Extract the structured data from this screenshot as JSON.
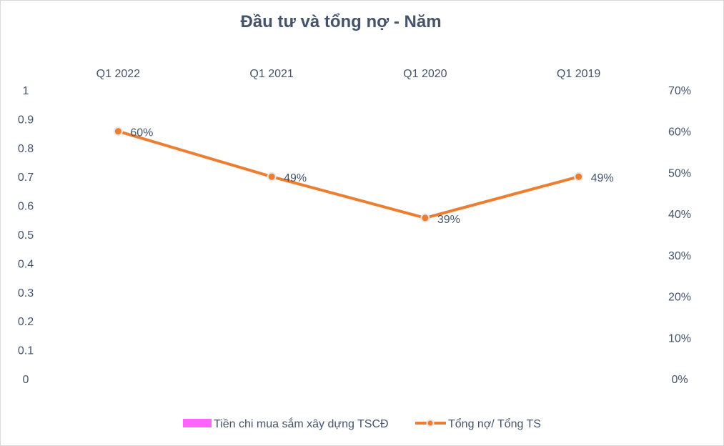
{
  "chart_data": {
    "type": "line",
    "title": "Đầu tư và tổng nợ - Năm",
    "categories": [
      "Q1 2022",
      "Q1 2021",
      "Q1 2020",
      "Q1 2019"
    ],
    "x_axis_position": "top",
    "series": [
      {
        "name": "Tiền chi mua sắm xây dựng TSCĐ",
        "type": "bar",
        "axis": "left",
        "color": "#ff66ff",
        "values": [
          0,
          0,
          0,
          0
        ]
      },
      {
        "name": "Tổng nợ/ Tổng TS",
        "type": "line",
        "axis": "right",
        "color": "#ed7d31",
        "values": [
          0.6,
          0.49,
          0.39,
          0.49
        ],
        "data_labels": [
          "60%",
          "49%",
          "39%",
          "49%"
        ]
      }
    ],
    "left_axis": {
      "ylim": [
        0,
        1
      ],
      "ticks": [
        "0",
        "0.1",
        "0.2",
        "0.3",
        "0.4",
        "0.5",
        "0.6",
        "0.7",
        "0.8",
        "0.9",
        "1"
      ]
    },
    "right_axis": {
      "ylim": [
        0,
        0.7
      ],
      "ticks": [
        "0%",
        "10%",
        "20%",
        "30%",
        "40%",
        "50%",
        "60%",
        "70%"
      ]
    },
    "grid": false,
    "legend": "bottom"
  }
}
